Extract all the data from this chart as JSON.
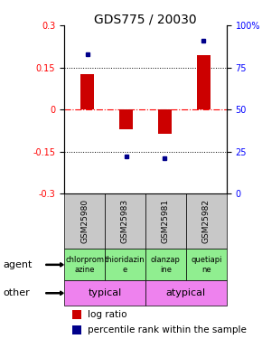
{
  "title": "GDS775 / 20030",
  "samples": [
    "GSM25980",
    "GSM25983",
    "GSM25981",
    "GSM25982"
  ],
  "log_ratios": [
    0.125,
    -0.07,
    -0.085,
    0.195
  ],
  "percentile_ranks": [
    83,
    22,
    21,
    91
  ],
  "agents": [
    "chlorprom\nazine",
    "thioridazin\ne",
    "olanzap\nine",
    "quetiapi\nne"
  ],
  "other_color": "#ee82ee",
  "agent_color": "#90ee90",
  "sample_bg_color": "#c8c8c8",
  "ylim_left": [
    -0.3,
    0.3
  ],
  "ylim_right": [
    0,
    100
  ],
  "yticks_left": [
    -0.3,
    -0.15,
    0,
    0.15,
    0.3
  ],
  "yticks_right": [
    0,
    25,
    50,
    75,
    100
  ],
  "bar_color": "#cc0000",
  "dot_color": "#00008b",
  "hline_red_color": "#ff0000",
  "dotted_hline_color": "#000000",
  "bar_width": 0.35,
  "title_fontsize": 10,
  "tick_fontsize": 7,
  "label_fontsize": 8,
  "legend_fontsize": 7.5,
  "sample_label_fontsize": 6.5,
  "agent_fontsize": 6,
  "other_fontsize": 8
}
